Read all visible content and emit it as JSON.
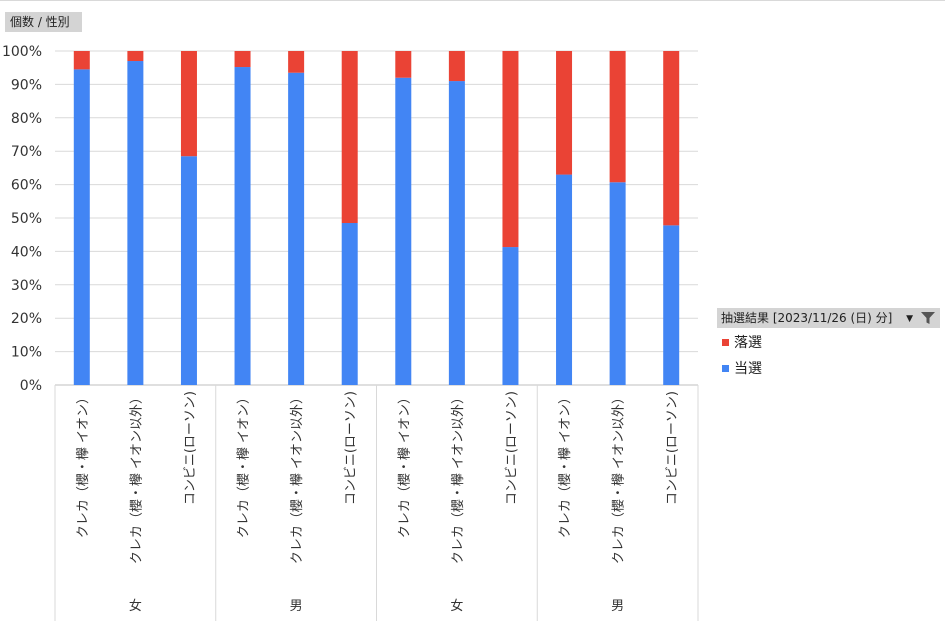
{
  "field_buttons": {
    "values": "個数 / 性別"
  },
  "legend": {
    "title": "抽選結果 [2023/11/26 (日) 分]",
    "items": [
      {
        "name": "落選",
        "color": "#ea4335"
      },
      {
        "name": "当選",
        "color": "#4285f4"
      }
    ]
  },
  "chart_data": {
    "type": "bar",
    "stacked": "percent",
    "title": "",
    "xlabel": "",
    "ylabel": "",
    "ylim": [
      0,
      1
    ],
    "yticks": [
      "0%",
      "10%",
      "20%",
      "30%",
      "40%",
      "50%",
      "60%",
      "70%",
      "80%",
      "90%",
      "100%"
    ],
    "grid": true,
    "legend_position": "right",
    "groups": [
      {
        "label": "女",
        "categories": [
          "クレカ（櫻・欅 イオン）",
          "クレカ（櫻・欅 イオン以外）",
          "コンビニ(ローソン)"
        ]
      },
      {
        "label": "男",
        "categories": [
          "クレカ（櫻・欅 イオン）",
          "クレカ（櫻・欅 イオン以外）",
          "コンビニ(ローソン)"
        ]
      },
      {
        "label": "女",
        "categories": [
          "クレカ（櫻・欅 イオン）",
          "クレカ（櫻・欅 イオン以外）",
          "コンビニ(ローソン)"
        ]
      },
      {
        "label": "男",
        "categories": [
          "クレカ（櫻・欅 イオン）",
          "クレカ（櫻・欅 イオン以外）",
          "コンビニ(ローソン)"
        ]
      }
    ],
    "series": [
      {
        "name": "当選",
        "color": "#4285f4",
        "values": [
          0.945,
          0.97,
          0.685,
          0.952,
          0.935,
          0.485,
          0.92,
          0.91,
          0.413,
          0.63,
          0.607,
          0.478
        ]
      },
      {
        "name": "落選",
        "color": "#ea4335",
        "values": [
          0.055,
          0.03,
          0.315,
          0.048,
          0.065,
          0.515,
          0.08,
          0.09,
          0.587,
          0.37,
          0.393,
          0.522
        ]
      }
    ]
  }
}
